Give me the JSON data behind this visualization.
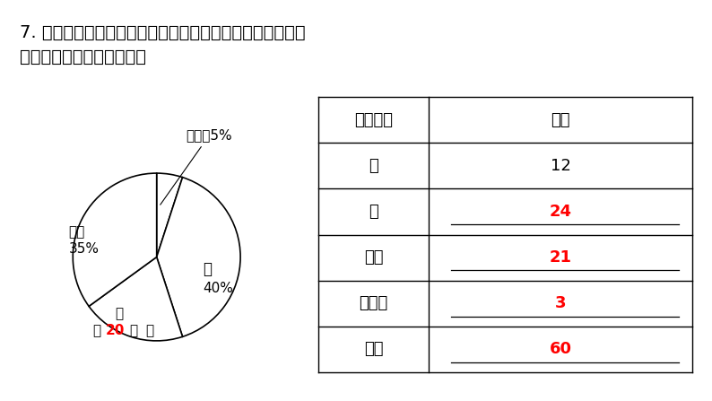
{
  "title_line1": "7. 下面是某班一次测试成绩的扇形统计图和与之相对应的统",
  "title_line2": "计表，请把它们补充完整。",
  "bg_color": "#ffffff",
  "pie_data": [
    40,
    20,
    35,
    5
  ],
  "pie_colors": [
    "#ffffff",
    "#ffffff",
    "#ffffff",
    "#ffffff"
  ],
  "pie_edge_color": "#000000",
  "pie_startangle": 90,
  "table_headers": [
    "成绩等级",
    "人数"
  ],
  "table_rows": [
    [
      "优",
      "12",
      "black"
    ],
    [
      "良",
      "24",
      "red"
    ],
    [
      "及格",
      "21",
      "red"
    ],
    [
      "不及格",
      "3",
      "red"
    ],
    [
      "合计",
      "60",
      "red"
    ]
  ],
  "label_bujiage": "不及格5%",
  "label_liang": "良",
  "label_liang_pct": "40%",
  "label_you": "优",
  "label_you_num": "20",
  "label_you_pct": "％",
  "label_jige": "及格",
  "label_jige_pct": "35%",
  "font_size_title": 14,
  "font_size_table": 13,
  "font_size_pie": 11
}
